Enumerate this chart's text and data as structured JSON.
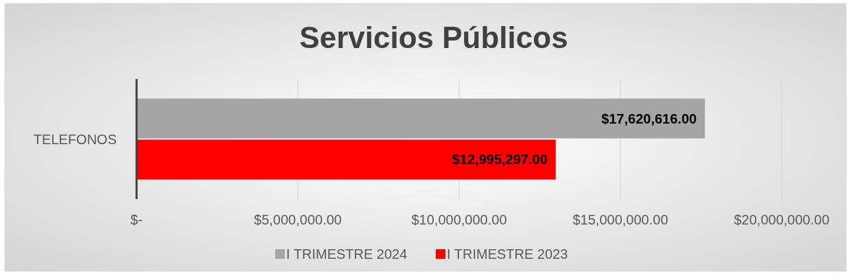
{
  "chart_data": {
    "type": "bar",
    "orientation": "horizontal",
    "title": "Servicios Públicos",
    "categories": [
      "TELEFONOS"
    ],
    "series": [
      {
        "name": "I TRIMESTRE 2024",
        "color": "#a5a5a5",
        "values": [
          17620616
        ],
        "value_labels": [
          "$17,620,616.00"
        ]
      },
      {
        "name": "I TRIMESTRE 2023",
        "color": "#ff0000",
        "values": [
          12995297
        ],
        "value_labels": [
          "$12,995,297.00"
        ]
      }
    ],
    "xlim": [
      0,
      20000000
    ],
    "xticks": [
      {
        "value": 0,
        "label": "$-"
      },
      {
        "value": 5000000,
        "label": "$5,000,000.00"
      },
      {
        "value": 10000000,
        "label": "$10,000,000.00"
      },
      {
        "value": 15000000,
        "label": "$15,000,000.00"
      },
      {
        "value": 20000000,
        "label": "$20,000,000.00"
      }
    ],
    "grid": "x",
    "legend": "bottom"
  }
}
